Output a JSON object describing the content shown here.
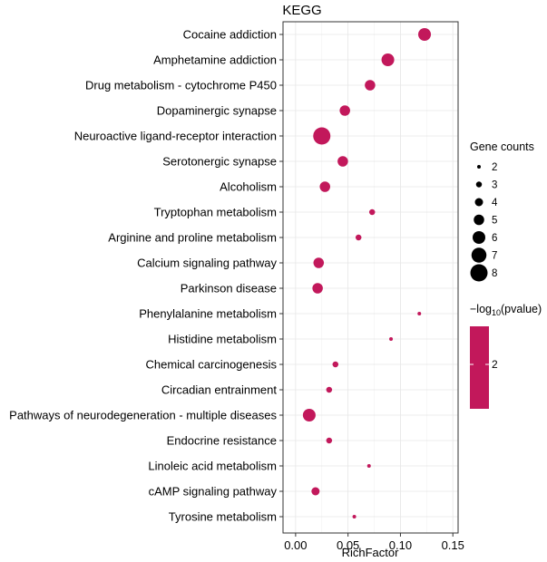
{
  "chart_data": {
    "type": "scatter",
    "title": "KEGG",
    "xlabel": "RichFactor",
    "ylabel": "",
    "xlim": [
      -0.012,
      0.155
    ],
    "x_ticks": [
      0.0,
      0.05,
      0.1,
      0.15
    ],
    "x_tick_labels": [
      "0.00",
      "0.05",
      "0.10",
      "0.15"
    ],
    "grid": true,
    "point_color": "#c2185b",
    "categories": [
      "Cocaine addiction",
      "Amphetamine addiction",
      "Drug metabolism - cytochrome P450",
      "Dopaminergic synapse",
      "Neuroactive ligand-receptor interaction",
      "Serotonergic synapse",
      "Alcoholism",
      "Tryptophan metabolism",
      "Arginine and proline metabolism",
      "Calcium signaling pathway",
      "Parkinson disease",
      "Phenylalanine metabolism",
      "Histidine metabolism",
      "Chemical carcinogenesis",
      "Circadian entrainment",
      "Pathways of neurodegeneration - multiple diseases",
      "Endocrine resistance",
      "Linoleic acid metabolism",
      "cAMP signaling pathway",
      "Tyrosine metabolism"
    ],
    "rich_factor": [
      0.123,
      0.088,
      0.071,
      0.047,
      0.025,
      0.045,
      0.028,
      0.073,
      0.06,
      0.022,
      0.021,
      0.118,
      0.091,
      0.038,
      0.032,
      0.013,
      0.032,
      0.07,
      0.019,
      0.056
    ],
    "gene_counts": [
      6,
      6,
      5,
      5,
      8,
      5,
      5,
      3,
      3,
      5,
      5,
      2,
      2,
      3,
      3,
      6,
      3,
      2,
      4,
      2
    ],
    "size_legend": {
      "title": "Gene counts",
      "values": [
        2,
        3,
        4,
        5,
        6,
        7,
        8
      ],
      "labels": [
        "2",
        "3",
        "4",
        "5",
        "6",
        "7",
        "8"
      ]
    },
    "color_legend": {
      "title_prefix": "−log",
      "title_sub": "10",
      "title_suffix": "(pvalue)",
      "tick_labels": [
        "2"
      ]
    }
  }
}
